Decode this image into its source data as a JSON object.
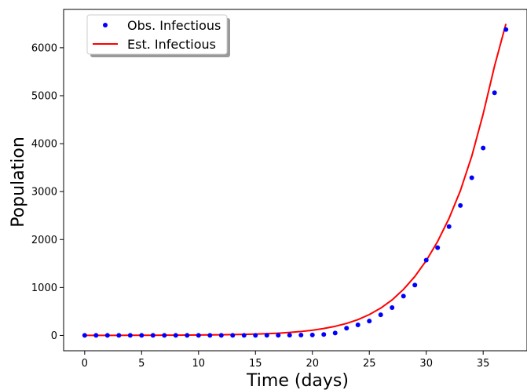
{
  "chart_data": {
    "type": "line",
    "title": "",
    "xlabel": "Time (days)",
    "ylabel": "Population",
    "xlim": [
      -1.85,
      38.85
    ],
    "ylim": [
      -320,
      6800
    ],
    "xticks": [
      0,
      5,
      10,
      15,
      20,
      25,
      30,
      35
    ],
    "yticks": [
      0,
      1000,
      2000,
      3000,
      4000,
      5000,
      6000
    ],
    "grid": false,
    "legend": {
      "position": "top-left"
    },
    "x": [
      0,
      1,
      2,
      3,
      4,
      5,
      6,
      7,
      8,
      9,
      10,
      11,
      12,
      13,
      14,
      15,
      16,
      17,
      18,
      19,
      20,
      21,
      22,
      23,
      24,
      25,
      26,
      27,
      28,
      29,
      30,
      31,
      32,
      33,
      34,
      35,
      36,
      37
    ],
    "series": [
      {
        "name": "Obs. Infectious",
        "style": "points",
        "color": "#0000ff",
        "values": [
          1,
          1,
          1,
          1,
          1,
          1,
          1,
          1,
          1,
          1,
          1,
          1,
          1,
          1,
          1,
          2,
          3,
          4,
          5,
          7,
          10,
          20,
          50,
          150,
          220,
          300,
          430,
          580,
          820,
          1050,
          1570,
          1830,
          2270,
          2710,
          3290,
          3910,
          5060,
          6380
        ]
      },
      {
        "name": "Est. Infectious",
        "style": "line",
        "color": "#ff0000",
        "values": [
          1,
          1,
          2,
          2,
          3,
          3,
          4,
          5,
          6,
          7,
          9,
          11,
          14,
          17,
          22,
          28,
          36,
          47,
          62,
          82,
          108,
          144,
          190,
          250,
          330,
          435,
          570,
          740,
          960,
          1230,
          1560,
          1960,
          2440,
          3020,
          3740,
          4620,
          5620,
          6500
        ]
      }
    ]
  }
}
